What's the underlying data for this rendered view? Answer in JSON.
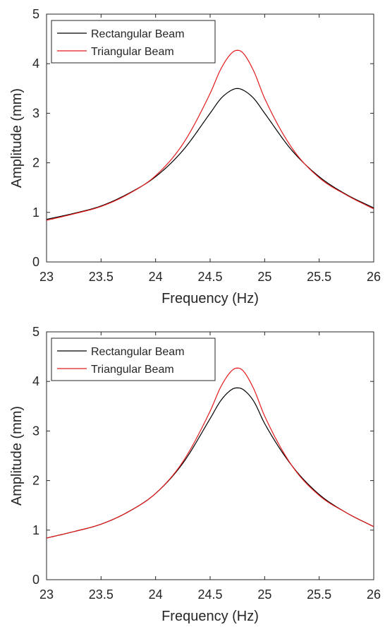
{
  "chart_data": [
    {
      "type": "line",
      "xlabel": "Frequency (Hz)",
      "ylabel": "Amplitude (mm)",
      "xlim": [
        23,
        26
      ],
      "ylim": [
        0,
        5
      ],
      "xticks": [
        "23",
        "23.5",
        "24",
        "24.5",
        "25",
        "25.5",
        "26"
      ],
      "yticks": [
        "0",
        "1",
        "2",
        "3",
        "4",
        "5"
      ],
      "grid": false,
      "legend_position": "top-left",
      "x": [
        23.0,
        23.25,
        23.5,
        23.75,
        24.0,
        24.25,
        24.5,
        24.6,
        24.7,
        24.75,
        24.8,
        24.9,
        25.0,
        25.25,
        25.5,
        25.75,
        26.0
      ],
      "series": [
        {
          "name": "Rectangular Beam",
          "color": "#000000",
          "values": [
            0.86,
            0.98,
            1.13,
            1.38,
            1.72,
            2.25,
            3.0,
            3.3,
            3.47,
            3.5,
            3.47,
            3.3,
            3.0,
            2.25,
            1.72,
            1.36,
            1.09
          ]
        },
        {
          "name": "Triangular Beam",
          "color": "#e41a1c",
          "values": [
            0.84,
            0.97,
            1.12,
            1.37,
            1.74,
            2.38,
            3.4,
            3.9,
            4.22,
            4.27,
            4.22,
            3.85,
            3.3,
            2.3,
            1.7,
            1.35,
            1.07
          ]
        }
      ]
    },
    {
      "type": "line",
      "xlabel": "Frequency (Hz)",
      "ylabel": "Amplitude (mm)",
      "xlim": [
        23,
        26
      ],
      "ylim": [
        0,
        5
      ],
      "xticks": [
        "23",
        "23.5",
        "24",
        "24.5",
        "25",
        "25.5",
        "26"
      ],
      "yticks": [
        "0",
        "1",
        "2",
        "3",
        "4",
        "5"
      ],
      "grid": false,
      "legend_position": "top-left",
      "x": [
        23.0,
        23.25,
        23.5,
        23.75,
        24.0,
        24.25,
        24.5,
        24.6,
        24.7,
        24.75,
        24.8,
        24.9,
        25.0,
        25.25,
        25.5,
        25.75,
        26.0
      ],
      "series": [
        {
          "name": "Rectangular Beam",
          "color": "#000000",
          "values": [
            0.84,
            0.97,
            1.12,
            1.37,
            1.74,
            2.35,
            3.25,
            3.62,
            3.84,
            3.87,
            3.84,
            3.6,
            3.15,
            2.3,
            1.72,
            1.35,
            1.07
          ]
        },
        {
          "name": "Triangular Beam",
          "color": "#e41a1c",
          "values": [
            0.84,
            0.97,
            1.12,
            1.37,
            1.74,
            2.38,
            3.4,
            3.9,
            4.22,
            4.27,
            4.22,
            3.85,
            3.3,
            2.3,
            1.7,
            1.35,
            1.07
          ]
        }
      ]
    }
  ]
}
